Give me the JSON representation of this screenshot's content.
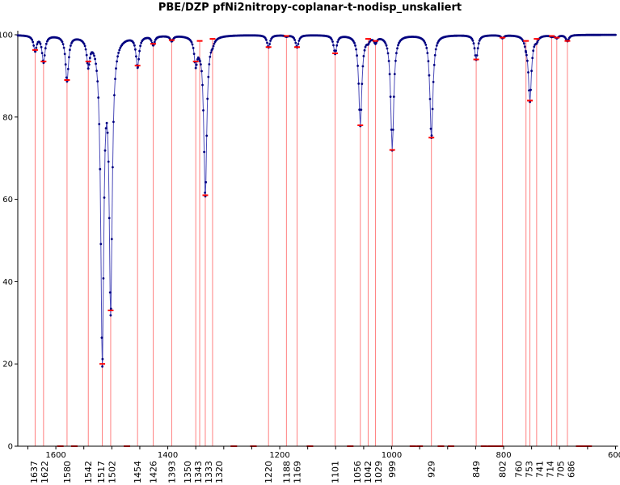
{
  "chart_data": {
    "type": "line",
    "title": "PBE/DZP pfNi2nitropy-coplanar-t-nodisp_unskaliert",
    "xlabel": "",
    "ylabel": "",
    "xlim": [
      1668,
      600
    ],
    "ylim": [
      0,
      100
    ],
    "x_reversed": true,
    "grid": false,
    "x_ticks": [
      1600,
      1400,
      1200,
      1000,
      800,
      600
    ],
    "y_ticks": [
      0,
      20,
      40,
      60,
      80,
      100
    ],
    "series_color": "#00007f",
    "stick_color": "#ff8080",
    "marker_color": "#ff0000",
    "peaks": [
      {
        "x": 1637,
        "y": 96.3,
        "label": "1637"
      },
      {
        "x": 1622,
        "y": 93.5,
        "label": "1622"
      },
      {
        "x": 1580,
        "y": 89.0,
        "label": "1580"
      },
      {
        "x": 1542,
        "y": 93.5,
        "label": "1542"
      },
      {
        "x": 1517,
        "y": 20.0,
        "label": "1517"
      },
      {
        "x": 1502,
        "y": 33.0,
        "label": "1502"
      },
      {
        "x": 1454,
        "y": 92.5,
        "label": "1454"
      },
      {
        "x": 1426,
        "y": 97.8,
        "label": "1426"
      },
      {
        "x": 1393,
        "y": 98.7,
        "label": "1393"
      },
      {
        "x": 1350,
        "y": 93.5,
        "label": "1350"
      },
      {
        "x": 1343,
        "y": 98.5,
        "label": "1343"
      },
      {
        "x": 1333,
        "y": 61.0,
        "label": "1333"
      },
      {
        "x": 1320,
        "y": 99.0,
        "label": "1320"
      },
      {
        "x": 1220,
        "y": 97.0,
        "label": "1220"
      },
      {
        "x": 1188,
        "y": 99.7,
        "label": "1188"
      },
      {
        "x": 1169,
        "y": 97.0,
        "label": "1169"
      },
      {
        "x": 1101,
        "y": 95.5,
        "label": "1101"
      },
      {
        "x": 1056,
        "y": 78.0,
        "label": "1056"
      },
      {
        "x": 1042,
        "y": 99.0,
        "label": "1042"
      },
      {
        "x": 1029,
        "y": 98.5,
        "label": "1029"
      },
      {
        "x": 999,
        "y": 72.0,
        "label": "999"
      },
      {
        "x": 929,
        "y": 75.0,
        "label": "929"
      },
      {
        "x": 849,
        "y": 94.0,
        "label": "849"
      },
      {
        "x": 802,
        "y": 99.3,
        "label": "802"
      },
      {
        "x": 760,
        "y": 98.5,
        "label": "760"
      },
      {
        "x": 753,
        "y": 84.0,
        "label": "753"
      },
      {
        "x": 741,
        "y": 99.0,
        "label": "741"
      },
      {
        "x": 714,
        "y": 99.7,
        "label": "714"
      },
      {
        "x": 705,
        "y": 99.3,
        "label": "705"
      },
      {
        "x": 686,
        "y": 98.5,
        "label": "686"
      }
    ],
    "baseline_markers": [
      1592,
      1567,
      1473,
      1282,
      1247,
      1146,
      1074,
      962,
      950,
      912,
      894,
      835,
      823,
      812,
      806,
      665,
      655,
      648
    ]
  }
}
